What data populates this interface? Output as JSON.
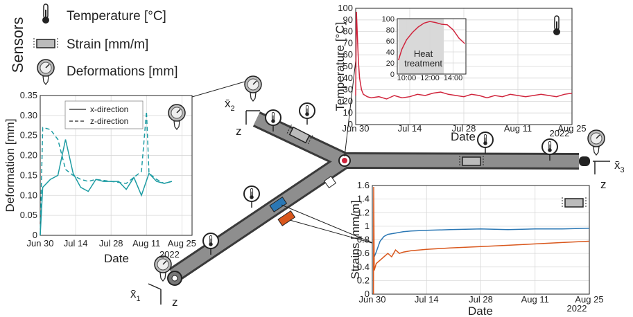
{
  "sensor_legend": {
    "title": "Sensors",
    "items": [
      "Temperature [°C]",
      "Strain [mm/m]",
      "Deformations [mm]"
    ]
  },
  "coordinate_systems": [
    {
      "x": "x̄",
      "index": "2",
      "z": "z"
    },
    {
      "x": "x̄",
      "index": "3",
      "z": "z"
    },
    {
      "x": "x̄",
      "index": "1",
      "z": "z"
    }
  ],
  "chart_data": [
    {
      "type": "line",
      "y_label": "Deformation [mm]",
      "x_label": "Date",
      "x_year": "2022",
      "xlim": [
        0,
        60
      ],
      "ylim": [
        0,
        0.35
      ],
      "grid": true,
      "legend": "upper left",
      "xticks": [
        {
          "value": 0,
          "label": "Jun 30"
        },
        {
          "value": 14,
          "label": "Jul 14"
        },
        {
          "value": 28,
          "label": "Jul 28"
        },
        {
          "value": 42,
          "label": "Aug 11"
        },
        {
          "value": 56,
          "label": "Aug 25"
        }
      ],
      "yticks": [
        0,
        0.05,
        {
          "value": 0.1,
          "label": "0.10"
        },
        0.15,
        {
          "value": 0.2,
          "label": "0.20"
        },
        0.25,
        {
          "value": 0.3,
          "label": "0.30"
        },
        0.35
      ],
      "series": [
        {
          "name": "x-direction",
          "color": "#1d9ca3",
          "dash": false,
          "x": [
            0,
            1,
            4,
            7,
            10,
            13,
            16,
            19,
            22,
            25,
            28,
            31,
            34,
            37,
            40,
            43,
            46,
            49,
            52
          ],
          "values": [
            0,
            0.12,
            0.14,
            0.15,
            0.24,
            0.155,
            0.12,
            0.11,
            0.14,
            0.135,
            0.135,
            0.135,
            0.115,
            0.145,
            0.1,
            0.155,
            0.135,
            0.13,
            0.135
          ]
        },
        {
          "name": "z-direction",
          "color": "#1d9ca3",
          "dash": true,
          "x": [
            0,
            1,
            4,
            7,
            10,
            13,
            16,
            19,
            22,
            28,
            34,
            40,
            42,
            43,
            46,
            49,
            52
          ],
          "values": [
            0,
            0.27,
            0.265,
            0.24,
            0.165,
            0.15,
            0.14,
            0.135,
            0.14,
            0.135,
            0.13,
            0.16,
            0.31,
            0.155,
            0.14,
            0.13,
            0.135
          ]
        }
      ]
    },
    {
      "type": "line",
      "y_label": "Temperature [°C]",
      "x_label": "Date",
      "x_year": "2022",
      "xlim": [
        0,
        56
      ],
      "ylim": [
        0,
        100
      ],
      "grid": true,
      "xticks": [
        {
          "value": 0,
          "label": "Jun 30"
        },
        {
          "value": 14,
          "label": "Jul 14"
        },
        {
          "value": 28,
          "label": "Jul 28"
        },
        {
          "value": 42,
          "label": "Aug 11"
        },
        {
          "value": 56,
          "label": "Aug 25"
        }
      ],
      "yticks": [
        0,
        10,
        20,
        30,
        40,
        50,
        60,
        70,
        80,
        90,
        100
      ],
      "series": [
        {
          "color": "#d0243c",
          "x": [
            0,
            0.2,
            0.4,
            0.7,
            1,
            1.5,
            2,
            3,
            4,
            6,
            8,
            10,
            12,
            14,
            16,
            18,
            20,
            22,
            24,
            26,
            28,
            30,
            32,
            34,
            36,
            38,
            40,
            42,
            44,
            46,
            48,
            50,
            52,
            54,
            56
          ],
          "values": [
            25,
            97,
            80,
            55,
            40,
            30,
            26,
            24,
            23,
            24,
            22,
            25,
            23,
            24,
            26,
            25,
            27,
            28,
            26,
            25,
            24,
            26,
            25,
            23,
            25,
            24,
            26,
            25,
            24,
            25,
            26,
            25,
            24,
            26,
            27
          ]
        }
      ]
    },
    {
      "type": "line",
      "annotation_lines": [
        "Heat",
        "treatment"
      ],
      "shade": [
        9.3,
        13.2
      ],
      "xlim": [
        9.2,
        15.1
      ],
      "ylim": [
        0,
        100
      ],
      "grid": true,
      "xticks": [
        {
          "value": 10,
          "label": "10:00"
        },
        {
          "value": 12,
          "label": "12:00"
        },
        {
          "value": 14,
          "label": "14:00"
        }
      ],
      "yticks": [
        0,
        20,
        40,
        60,
        80,
        100
      ],
      "series": [
        {
          "color": "#d0243c",
          "x": [
            9.3,
            9.6,
            10,
            10.5,
            11,
            11.5,
            12,
            12.5,
            13,
            13.5,
            14,
            14.5,
            15
          ],
          "values": [
            25,
            45,
            62,
            75,
            85,
            92,
            95,
            93,
            90,
            89,
            80,
            65,
            55
          ]
        }
      ]
    },
    {
      "type": "line",
      "y_label": "Strains [mm/m]",
      "x_label": "Date",
      "x_year": "2022",
      "xlim": [
        0,
        56
      ],
      "ylim": [
        0,
        1.6
      ],
      "grid": true,
      "xticks": [
        {
          "value": 0,
          "label": "Jun 30"
        },
        {
          "value": 14,
          "label": "Jul 14"
        },
        {
          "value": 28,
          "label": "Jul 28"
        },
        {
          "value": 42,
          "label": "Aug 11"
        },
        {
          "value": 56,
          "label": "Aug 25"
        }
      ],
      "yticks": [
        0,
        0.2,
        0.4,
        0.6,
        0.8,
        1,
        1.2,
        1.4,
        1.6
      ],
      "series": [
        {
          "color": "#2a77b4",
          "x": [
            0.5,
            1,
            1.5,
            2,
            3,
            4,
            6,
            8,
            10,
            14,
            20,
            28,
            35,
            42,
            49,
            56
          ],
          "values": [
            0.55,
            0.62,
            0.7,
            0.78,
            0.85,
            0.88,
            0.9,
            0.92,
            0.93,
            0.94,
            0.95,
            0.96,
            0.95,
            0.96,
            0.96,
            0.97
          ]
        },
        {
          "color": "#d9571c",
          "x": [
            0.3,
            0.35,
            0.5,
            1,
            2,
            3,
            4,
            5,
            6,
            7,
            8,
            10,
            14,
            20,
            28,
            35,
            42,
            49,
            56
          ],
          "values": [
            0,
            1.58,
            0.35,
            0.45,
            0.5,
            0.55,
            0.6,
            0.55,
            0.65,
            0.6,
            0.62,
            0.64,
            0.66,
            0.68,
            0.7,
            0.72,
            0.74,
            0.76,
            0.78
          ]
        }
      ]
    }
  ]
}
